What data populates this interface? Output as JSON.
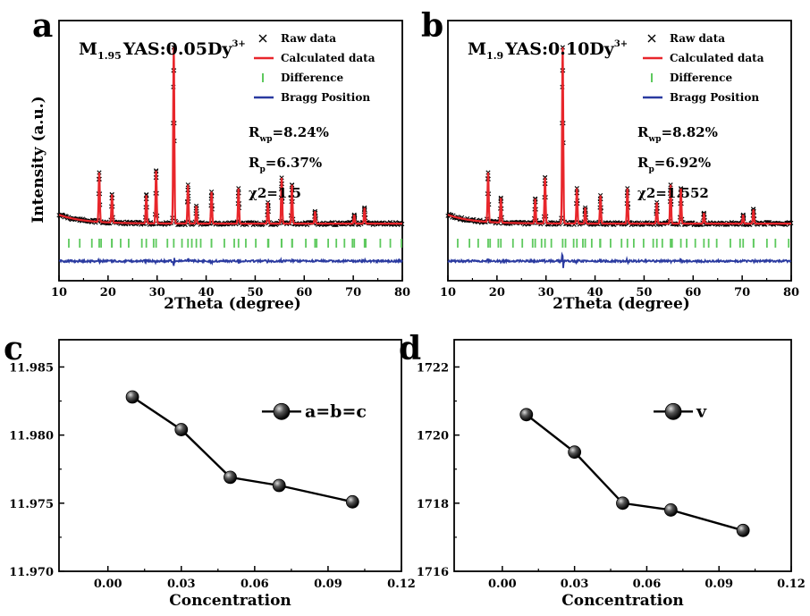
{
  "chart_data": [
    {
      "panel": "a",
      "type": "line",
      "title": "M1.95YAS:0.05Dy3+",
      "composition": {
        "prefix": "M",
        "sub": "1.95",
        "mid": "YAS:0.05Dy",
        "sup": "3+"
      },
      "xlabel": "2Theta (degree)",
      "ylabel": "Intensity (a.u.)",
      "xlim": [
        10,
        80
      ],
      "xticks": [
        "10",
        "20",
        "30",
        "40",
        "50",
        "60",
        "70",
        "80"
      ],
      "legend": [
        "Raw data",
        "Calculated data",
        "Difference",
        "Bragg Position"
      ],
      "stats": {
        "Rwp": "=8.24%",
        "Rp": "=6.37%",
        "chi2": "χ2=1.5"
      },
      "peaks": [
        {
          "x": 18.2,
          "h": 0.28
        },
        {
          "x": 20.8,
          "h": 0.16
        },
        {
          "x": 27.8,
          "h": 0.16
        },
        {
          "x": 29.8,
          "h": 0.3
        },
        {
          "x": 33.4,
          "h": 1.0
        },
        {
          "x": 36.3,
          "h": 0.22
        },
        {
          "x": 38.0,
          "h": 0.1
        },
        {
          "x": 41.1,
          "h": 0.18
        },
        {
          "x": 46.6,
          "h": 0.2
        },
        {
          "x": 52.6,
          "h": 0.12
        },
        {
          "x": 55.4,
          "h": 0.26
        },
        {
          "x": 57.5,
          "h": 0.22
        },
        {
          "x": 62.2,
          "h": 0.07
        },
        {
          "x": 70.2,
          "h": 0.05
        },
        {
          "x": 72.3,
          "h": 0.09
        }
      ]
    },
    {
      "panel": "b",
      "type": "line",
      "title": "M1.9YAS:0.10Dy3+",
      "composition": {
        "prefix": "M",
        "sub": "1.9",
        "mid": "YAS:0.10Dy",
        "sup": "3+"
      },
      "xlabel": "2Theta (degree)",
      "ylabel": "",
      "xlim": [
        10,
        80
      ],
      "xticks": [
        "10",
        "20",
        "30",
        "40",
        "50",
        "60",
        "70",
        "80"
      ],
      "legend": [
        "Raw data",
        "Calculated data",
        "Difference",
        "Bragg Position"
      ],
      "stats": {
        "Rwp": "=8.82%",
        "Rp": "=6.92%",
        "chi2": "χ2=1.552"
      },
      "peaks": [
        {
          "x": 18.2,
          "h": 0.28
        },
        {
          "x": 20.8,
          "h": 0.14
        },
        {
          "x": 27.8,
          "h": 0.14
        },
        {
          "x": 29.8,
          "h": 0.26
        },
        {
          "x": 33.4,
          "h": 1.0
        },
        {
          "x": 36.3,
          "h": 0.2
        },
        {
          "x": 38.0,
          "h": 0.09
        },
        {
          "x": 41.1,
          "h": 0.16
        },
        {
          "x": 46.6,
          "h": 0.2
        },
        {
          "x": 52.6,
          "h": 0.12
        },
        {
          "x": 55.4,
          "h": 0.22
        },
        {
          "x": 57.5,
          "h": 0.2
        },
        {
          "x": 62.2,
          "h": 0.06
        },
        {
          "x": 70.2,
          "h": 0.05
        },
        {
          "x": 72.3,
          "h": 0.08
        }
      ]
    },
    {
      "panel": "c",
      "type": "line",
      "xlabel": "Concentration",
      "ylabel": "",
      "xlim": [
        -0.02,
        0.12
      ],
      "ylim": [
        11.97,
        11.987
      ],
      "xticks": [
        0.0,
        0.03,
        0.06,
        0.09,
        0.12
      ],
      "xtick_labels": [
        "0.00",
        "0.03",
        "0.06",
        "0.09",
        "0.12"
      ],
      "yticks": [
        11.97,
        11.975,
        11.98,
        11.985
      ],
      "ytick_labels": [
        "11.970",
        "11.975",
        "11.980",
        "11.985"
      ],
      "series": [
        {
          "name": "a=b=c",
          "x": [
            0.01,
            0.03,
            0.05,
            0.07,
            0.1
          ],
          "y": [
            11.9828,
            11.9804,
            11.9769,
            11.9763,
            11.9751
          ]
        }
      ]
    },
    {
      "panel": "d",
      "type": "line",
      "xlabel": "Concentration",
      "ylabel": "",
      "xlim": [
        -0.02,
        0.12
      ],
      "ylim": [
        1716,
        1722.8
      ],
      "xticks": [
        0.0,
        0.03,
        0.06,
        0.09,
        0.12
      ],
      "xtick_labels": [
        "0.00",
        "0.03",
        "0.06",
        "0.09",
        "0.12"
      ],
      "yticks": [
        1716,
        1718,
        1720,
        1722
      ],
      "ytick_labels": [
        "1716",
        "1718",
        "1720",
        "1722"
      ],
      "series": [
        {
          "name": "v",
          "x": [
            0.01,
            0.03,
            0.05,
            0.07,
            0.1
          ],
          "y": [
            1720.6,
            1719.5,
            1718.0,
            1717.8,
            1717.2
          ]
        }
      ]
    }
  ],
  "colors": {
    "raw": "#000000",
    "calc": "#e8262b",
    "diff": "#2a3aa0",
    "bragg": "#5ec95e"
  }
}
